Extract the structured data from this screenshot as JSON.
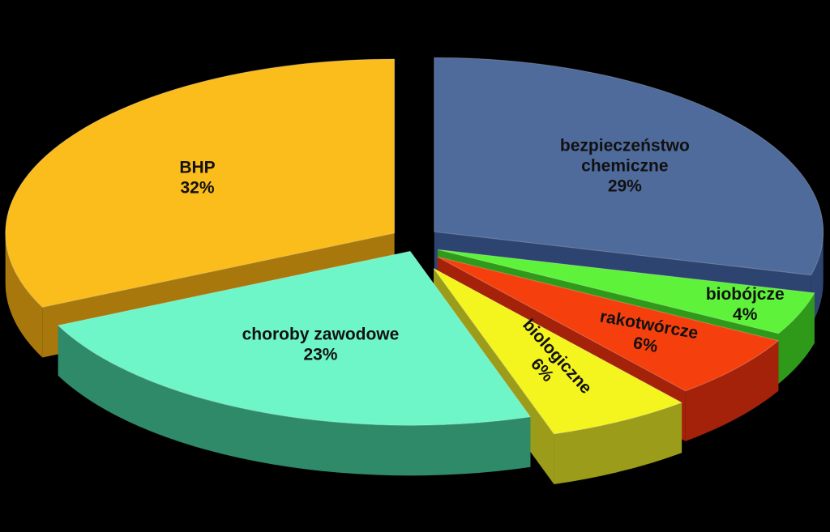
{
  "chart_data": {
    "type": "pie",
    "style": "3d-exploded",
    "background": "#000000",
    "slices": [
      {
        "key": "bezpieczenstwo",
        "label": [
          "bezpieczeństwo",
          "chemiczne"
        ],
        "percent_label": "29%",
        "value": 29,
        "color": "#4F6B9C",
        "side_color": "#2E4470"
      },
      {
        "key": "biobojcze",
        "label": [
          "biobójcze"
        ],
        "percent_label": "4%",
        "value": 4,
        "color": "#5EF23A",
        "side_color": "#2F9A1A"
      },
      {
        "key": "rakotworcze",
        "label": [
          "rakotwórcze"
        ],
        "percent_label": "6%",
        "value": 6,
        "color": "#F5400E",
        "side_color": "#A4220A"
      },
      {
        "key": "biologiczne",
        "label": [
          "biologiczne"
        ],
        "percent_label": "6%",
        "value": 6,
        "color": "#F4F41E",
        "side_color": "#9C9C1B"
      },
      {
        "key": "choroby",
        "label": [
          "choroby zawodowe"
        ],
        "percent_label": "23%",
        "value": 23,
        "color": "#6EF6C8",
        "side_color": "#2F8A6A"
      },
      {
        "key": "bhp",
        "label": [
          "BHP"
        ],
        "percent_label": "32%",
        "value": 32,
        "color": "#FBBD1C",
        "side_color": "#A8780C"
      }
    ]
  }
}
